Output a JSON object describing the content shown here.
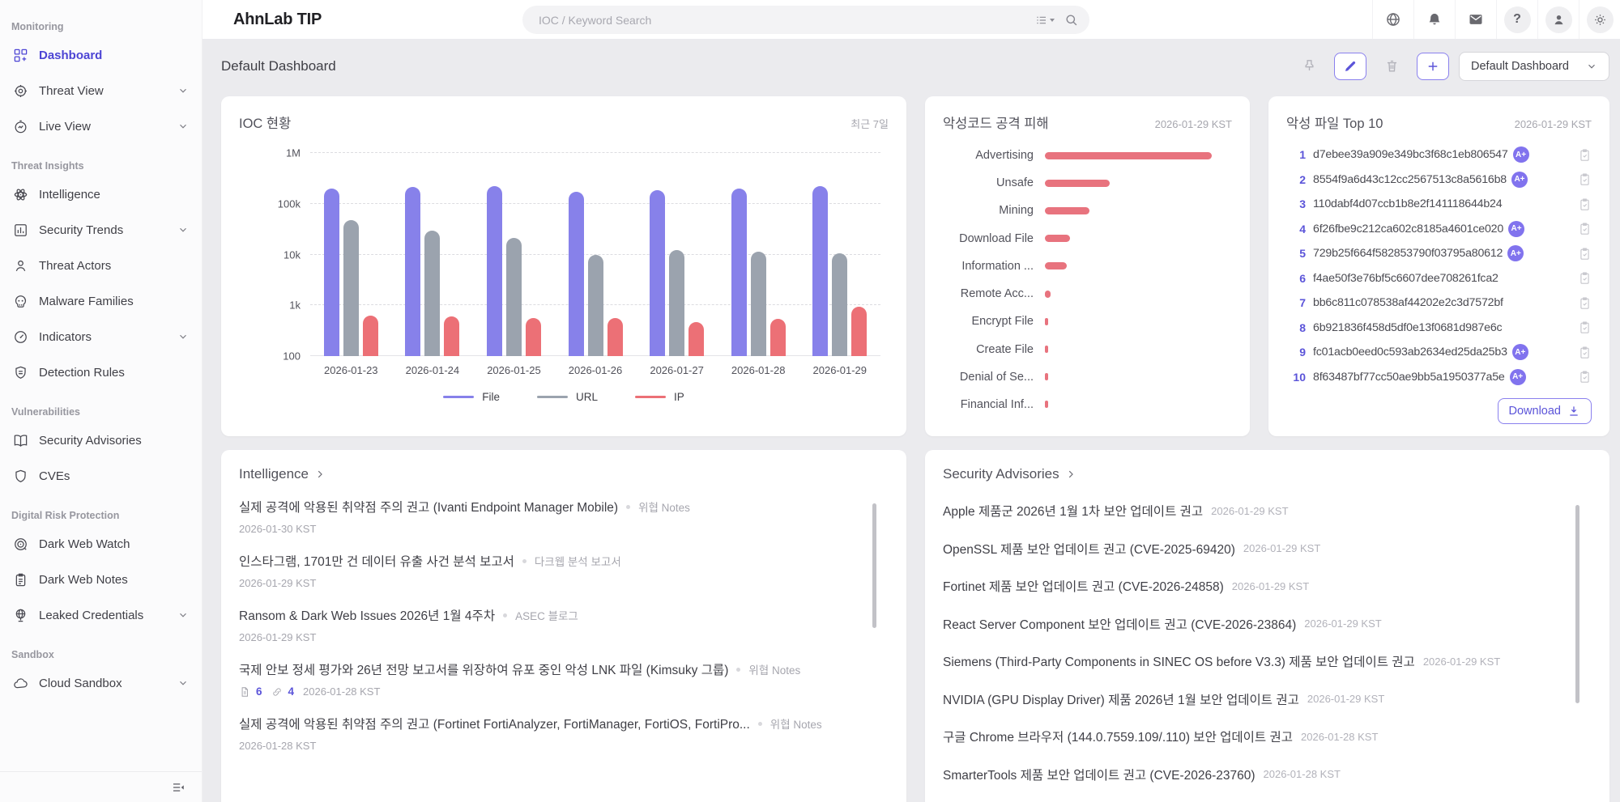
{
  "topbar": {
    "logo": "AhnLab TIP",
    "search_placeholder": "IOC / Keyword Search"
  },
  "sidebar": {
    "sections": [
      {
        "label": "Monitoring",
        "items": [
          {
            "label": "Dashboard",
            "icon": "dashboard-icon",
            "active": true
          },
          {
            "label": "Threat View",
            "icon": "target-icon",
            "chevron": true
          },
          {
            "label": "Live View",
            "icon": "gauge-icon",
            "chevron": true
          }
        ]
      },
      {
        "label": "Threat Insights",
        "items": [
          {
            "label": "Intelligence",
            "icon": "atom-icon"
          },
          {
            "label": "Security Trends",
            "icon": "bar-chart-icon",
            "chevron": true
          },
          {
            "label": "Threat Actors",
            "icon": "person-icon"
          },
          {
            "label": "Malware Families",
            "icon": "skull-icon"
          },
          {
            "label": "Indicators",
            "icon": "speedometer-icon",
            "chevron": true
          },
          {
            "label": "Detection Rules",
            "icon": "shield-lines-icon"
          }
        ]
      },
      {
        "label": "Vulnerabilities",
        "items": [
          {
            "label": "Security Advisories",
            "icon": "book-icon"
          },
          {
            "label": "CVEs",
            "icon": "shield-icon"
          }
        ]
      },
      {
        "label": "Digital Risk Protection",
        "items": [
          {
            "label": "Dark Web Watch",
            "icon": "dartboard-icon"
          },
          {
            "label": "Dark Web Notes",
            "icon": "note-icon"
          },
          {
            "label": "Leaked Credentials",
            "icon": "globe-stand-icon",
            "chevron": true
          }
        ]
      },
      {
        "label": "Sandbox",
        "items": [
          {
            "label": "Cloud Sandbox",
            "icon": "cloud-icon",
            "chevron": true
          }
        ]
      }
    ]
  },
  "page": {
    "title": "Default Dashboard",
    "dashboard_select": "Default Dashboard"
  },
  "panels": {
    "ioc": {
      "title": "IOC 현황",
      "period": "최근 7일"
    },
    "attack": {
      "title": "악성코드 공격 피해",
      "date": "2026-01-29 KST"
    },
    "top_files": {
      "title": "악성 파일 Top 10",
      "date": "2026-01-29 KST",
      "download_label": "Download",
      "items": [
        {
          "rank": 1,
          "hash": "d7ebee39a909e349bc3f68c1eb806547",
          "badge": "A+"
        },
        {
          "rank": 2,
          "hash": "8554f9a6d43c12cc2567513c8a5616b8",
          "badge": "A+"
        },
        {
          "rank": 3,
          "hash": "110dabf4d07ccb1b8e2f141118644b24",
          "badge": ""
        },
        {
          "rank": 4,
          "hash": "6f26fbe9c212ca602c8185a4601ce020",
          "badge": "A+"
        },
        {
          "rank": 5,
          "hash": "729b25f664f582853790f03795a80612",
          "badge": "A+"
        },
        {
          "rank": 6,
          "hash": "f4ae50f3e76bf5c6607dee708261fca2",
          "badge": ""
        },
        {
          "rank": 7,
          "hash": "bb6c811c078538af44202e2c3d7572bf",
          "badge": ""
        },
        {
          "rank": 8,
          "hash": "6b921836f458d5df0e13f0681d987e6c",
          "badge": ""
        },
        {
          "rank": 9,
          "hash": "fc01acb0eed0c593ab2634ed25da25b3",
          "badge": "A+"
        },
        {
          "rank": 10,
          "hash": "8f63487bf77cc50ae9bb5a1950377a5e",
          "badge": "A+"
        }
      ]
    },
    "intelligence": {
      "title": "Intelligence",
      "items": [
        {
          "title": "실제 공격에 악용된 취약점 주의 권고 (Ivanti Endpoint Manager Mobile)",
          "tag": "위협 Notes",
          "date": "2026-01-30 KST"
        },
        {
          "title": "인스타그램, 1701만 건 데이터 유출 사건 분석 보고서",
          "tag": "다크웹 분석 보고서",
          "date": "2026-01-29 KST"
        },
        {
          "title": "Ransom & Dark Web Issues 2026년 1월 4주차",
          "tag": "ASEC 블로그",
          "date": "2026-01-29 KST"
        },
        {
          "title": "국제 안보 정세 평가와 26년 전망 보고서를 위장하여 유포 중인 악성 LNK 파일 (Kimsuky 그룹)",
          "tag": "위협 Notes",
          "date": "2026-01-28 KST",
          "doc_count": 6,
          "link_count": 4
        },
        {
          "title": "실제 공격에 악용된 취약점 주의 권고 (Fortinet FortiAnalyzer, FortiManager, FortiOS, FortiPro...",
          "tag": "위협 Notes",
          "date": "2026-01-28 KST"
        }
      ]
    },
    "advisories": {
      "title": "Security Advisories",
      "items": [
        {
          "title": "Apple 제품군 2026년 1월 1차 보안 업데이트 권고",
          "date": "2026-01-29 KST"
        },
        {
          "title": "OpenSSL 제품 보안 업데이트 권고 (CVE-2025-69420)",
          "date": "2026-01-29 KST"
        },
        {
          "title": "Fortinet 제품 보안 업데이트 권고 (CVE-2026-24858)",
          "date": "2026-01-29 KST"
        },
        {
          "title": "React Server Component 보안 업데이트 권고 (CVE-2026-23864)",
          "date": "2026-01-29 KST"
        },
        {
          "title": "Siemens (Third-Party Components in SINEC OS before V3.3) 제품 보안 업데이트 권고",
          "date": "2026-01-29 KST"
        },
        {
          "title": "NVIDIA (GPU Display Driver) 제품 2026년 1월 보안 업데이트 권고",
          "date": "2026-01-29 KST"
        },
        {
          "title": "구글 Chrome 브라우저 (144.0.7559.109/.110) 보안 업데이트 권고",
          "date": "2026-01-28 KST"
        },
        {
          "title": "SmarterTools 제품 보안 업데이트 권고 (CVE-2026-23760)",
          "date": "2026-01-28 KST"
        }
      ]
    }
  },
  "chart_data": [
    {
      "type": "bar",
      "title": "IOC 현황",
      "subtitle": "최근 7일",
      "scale": "log",
      "ylim": [
        100,
        1000000
      ],
      "yticks": [
        "100",
        "1k",
        "10k",
        "100k",
        "1M"
      ],
      "grid": true,
      "legend_position": "bottom",
      "categories": [
        "2026-01-23",
        "2026-01-24",
        "2026-01-25",
        "2026-01-26",
        "2026-01-27",
        "2026-01-28",
        "2026-01-29"
      ],
      "series": [
        {
          "name": "File",
          "color": "#8781ea",
          "values": [
            200000,
            215000,
            220000,
            170000,
            185000,
            200000,
            225000
          ]
        },
        {
          "name": "URL",
          "color": "#9ba3ae",
          "values": [
            47000,
            29000,
            21000,
            10000,
            12000,
            11500,
            10500
          ]
        },
        {
          "name": "IP",
          "color": "#ec7076",
          "values": [
            630,
            610,
            560,
            570,
            470,
            540,
            950
          ]
        }
      ]
    },
    {
      "type": "bar",
      "orientation": "horizontal",
      "title": "악성코드 공격 피해",
      "date": "2026-01-29 KST",
      "color": "#e8737e",
      "unit": "relative length, % of max",
      "categories": [
        "Advertising",
        "Unsafe",
        "Mining",
        "Download File",
        "Information ...",
        "Remote Acc...",
        "Encrypt File",
        "Create File",
        "Denial of Se...",
        "Financial Inf..."
      ],
      "values": [
        100,
        39,
        27,
        15,
        13,
        3.5,
        1.5,
        1.2,
        1.2,
        1.2
      ]
    }
  ]
}
